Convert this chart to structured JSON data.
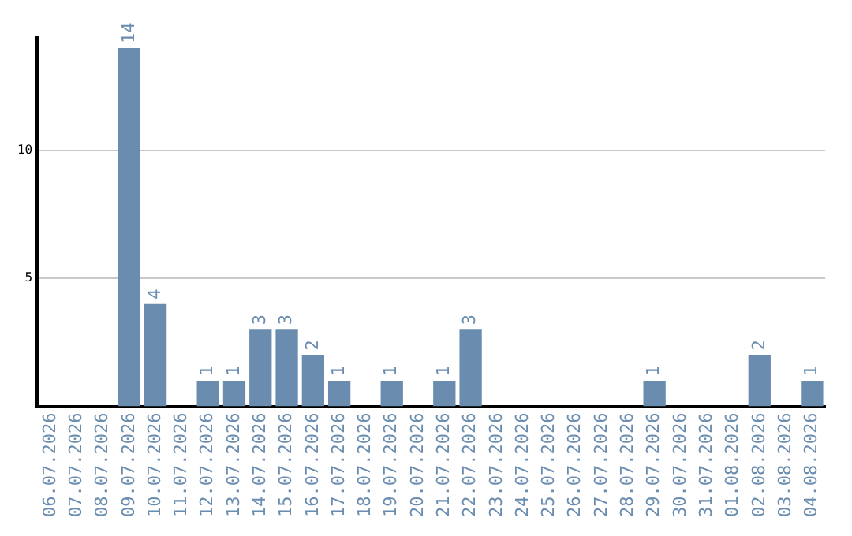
{
  "chart_data": {
    "type": "bar",
    "categories": [
      "06.07.2026",
      "07.07.2026",
      "08.07.2026",
      "09.07.2026",
      "10.07.2026",
      "11.07.2026",
      "12.07.2026",
      "13.07.2026",
      "14.07.2026",
      "15.07.2026",
      "16.07.2026",
      "17.07.2026",
      "18.07.2026",
      "19.07.2026",
      "20.07.2026",
      "21.07.2026",
      "22.07.2026",
      "23.07.2026",
      "24.07.2026",
      "25.07.2026",
      "26.07.2026",
      "27.07.2026",
      "28.07.2026",
      "29.07.2026",
      "30.07.2026",
      "31.07.2026",
      "01.08.2026",
      "02.08.2026",
      "03.08.2026",
      "04.08.2026"
    ],
    "values": [
      0,
      0,
      0,
      14,
      4,
      0,
      1,
      1,
      3,
      3,
      2,
      1,
      0,
      1,
      0,
      1,
      3,
      0,
      0,
      0,
      0,
      0,
      0,
      1,
      0,
      0,
      0,
      2,
      0,
      1
    ],
    "value_labels": [
      null,
      null,
      null,
      "14",
      "4",
      null,
      "1",
      "1",
      "3",
      "3",
      "2",
      "1",
      null,
      "1",
      null,
      "1",
      "3",
      null,
      null,
      null,
      null,
      null,
      null,
      "1",
      null,
      null,
      null,
      "2",
      null,
      "1"
    ],
    "color": "#6a8caf",
    "ylim": [
      0,
      14.4
    ],
    "yticks": [
      5,
      10
    ],
    "grid": "y",
    "legend": false
  }
}
